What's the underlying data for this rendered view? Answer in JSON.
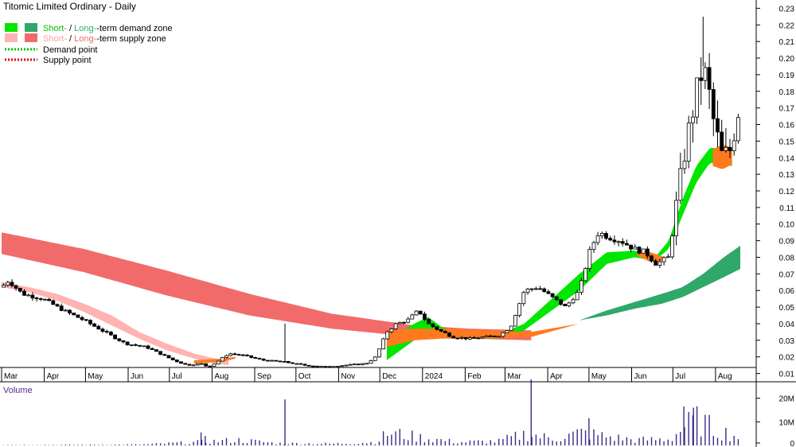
{
  "chart_data": {
    "type": "candlestick",
    "title": "Titomic Limited Ordinary - Daily",
    "legend": [
      {
        "label_a": "Short-",
        "sep": " / ",
        "label_b": "Long-",
        "rest": "-term demand zone",
        "color_a": "#00e600",
        "color_b": "#2fa86a",
        "text_a": "#00c000",
        "text_b": "#2fa86a"
      },
      {
        "label_a": "Short-",
        "sep": " / ",
        "label_b": "Long-",
        "rest": "-term supply zone",
        "color_a": "#ffb3b3",
        "color_b": "#f26b6b",
        "text_a": "#ff9e9e",
        "text_b": "#f26b6b"
      },
      {
        "label": "Demand point",
        "color": "#00c000",
        "dotted": true
      },
      {
        "label": "Supply point",
        "color": "#e00000",
        "dotted": true
      }
    ],
    "price_axis": {
      "min": 0.005,
      "max": 0.235,
      "ticks": [
        "0.23",
        "0.22",
        "0.21",
        "0.20",
        "0.19",
        "0.18",
        "0.17",
        "0.16",
        "0.15",
        "0.14",
        "0.13",
        "0.12",
        "0.11",
        "0.10",
        "0.09",
        "0.08",
        "0.07",
        "0.06",
        "0.05",
        "0.04",
        "0.03",
        "0.02",
        "0.01"
      ]
    },
    "volume_axis": {
      "title": "Volume",
      "min": 0,
      "max": 27000000,
      "ticks": [
        "20M",
        "10M",
        "0"
      ]
    },
    "months": [
      "Mar",
      "Apr",
      "May",
      "Jun",
      "Jul",
      "Aug",
      "Sep",
      "Oct",
      "Nov",
      "Dec",
      "2024",
      "Feb",
      "Mar",
      "Apr",
      "May",
      "Jun",
      "Jul",
      "Aug"
    ],
    "month_days": [
      0,
      31,
      61,
      92,
      122,
      153,
      184,
      214,
      245,
      275,
      306,
      337,
      366,
      397,
      427,
      458,
      488,
      519
    ],
    "total_days": 537,
    "price_path": [
      [
        0,
        0.062
      ],
      [
        5,
        0.066
      ],
      [
        15,
        0.058
      ],
      [
        30,
        0.055
      ],
      [
        45,
        0.048
      ],
      [
        60,
        0.042
      ],
      [
        75,
        0.035
      ],
      [
        90,
        0.028
      ],
      [
        105,
        0.026
      ],
      [
        115,
        0.022
      ],
      [
        125,
        0.018
      ],
      [
        135,
        0.015
      ],
      [
        145,
        0.016
      ],
      [
        150,
        0.014
      ],
      [
        155,
        0.016
      ],
      [
        165,
        0.022
      ],
      [
        175,
        0.021
      ],
      [
        190,
        0.018
      ],
      [
        205,
        0.017
      ],
      [
        220,
        0.015
      ],
      [
        235,
        0.014
      ],
      [
        250,
        0.015
      ],
      [
        265,
        0.016
      ],
      [
        272,
        0.02
      ],
      [
        280,
        0.035
      ],
      [
        287,
        0.04
      ],
      [
        295,
        0.042
      ],
      [
        303,
        0.048
      ],
      [
        310,
        0.04
      ],
      [
        318,
        0.036
      ],
      [
        328,
        0.032
      ],
      [
        340,
        0.031
      ],
      [
        352,
        0.032
      ],
      [
        362,
        0.033
      ],
      [
        370,
        0.038
      ],
      [
        380,
        0.06
      ],
      [
        390,
        0.062
      ],
      [
        400,
        0.056
      ],
      [
        410,
        0.05
      ],
      [
        420,
        0.06
      ],
      [
        428,
        0.085
      ],
      [
        434,
        0.095
      ],
      [
        442,
        0.092
      ],
      [
        450,
        0.09
      ],
      [
        460,
        0.085
      ],
      [
        468,
        0.083
      ],
      [
        476,
        0.076
      ],
      [
        485,
        0.08
      ],
      [
        492,
        0.12
      ],
      [
        498,
        0.15
      ],
      [
        504,
        0.175
      ],
      [
        510,
        0.195
      ],
      [
        514,
        0.18
      ],
      [
        518,
        0.16
      ],
      [
        524,
        0.14
      ],
      [
        530,
        0.145
      ],
      [
        537,
        0.175
      ]
    ],
    "volume_path": [
      [
        0,
        0.2
      ],
      [
        60,
        0.3
      ],
      [
        100,
        0.4
      ],
      [
        140,
        1.5
      ],
      [
        170,
        2.5
      ],
      [
        200,
        1.0
      ],
      [
        240,
        0.8
      ],
      [
        270,
        1.5
      ],
      [
        280,
        6.0
      ],
      [
        300,
        4.0
      ],
      [
        330,
        1.5
      ],
      [
        360,
        2.0
      ],
      [
        380,
        5.5
      ],
      [
        400,
        3.0
      ],
      [
        420,
        6.0
      ],
      [
        440,
        4.0
      ],
      [
        460,
        2.5
      ],
      [
        485,
        3.0
      ],
      [
        495,
        9.0
      ],
      [
        505,
        12.0
      ],
      [
        515,
        8.0
      ],
      [
        537,
        3.5
      ]
    ],
    "volume_spikes": [
      [
        145,
        5.5
      ],
      [
        148,
        4.0
      ],
      [
        206,
        19.5
      ],
      [
        385,
        28.0
      ],
      [
        427,
        11.5
      ],
      [
        496,
        16.5
      ],
      [
        503,
        16.0
      ]
    ],
    "long_supply_zone": {
      "from_day": 0,
      "to_day": 385,
      "upper": [
        [
          0,
          0.095
        ],
        [
          60,
          0.085
        ],
        [
          120,
          0.072
        ],
        [
          180,
          0.058
        ],
        [
          240,
          0.046
        ],
        [
          300,
          0.039
        ],
        [
          340,
          0.037
        ],
        [
          385,
          0.036
        ]
      ],
      "lower": [
        [
          0,
          0.082
        ],
        [
          60,
          0.071
        ],
        [
          120,
          0.057
        ],
        [
          180,
          0.045
        ],
        [
          240,
          0.037
        ],
        [
          300,
          0.032
        ],
        [
          340,
          0.031
        ],
        [
          385,
          0.03
        ]
      ]
    },
    "short_supply_zone": {
      "from_day": 0,
      "to_day": 165,
      "upper": [
        [
          0,
          0.065
        ],
        [
          20,
          0.062
        ],
        [
          40,
          0.058
        ],
        [
          60,
          0.052
        ],
        [
          80,
          0.045
        ],
        [
          100,
          0.035
        ],
        [
          120,
          0.028
        ],
        [
          140,
          0.022
        ],
        [
          155,
          0.019
        ],
        [
          165,
          0.018
        ]
      ],
      "lower": [
        [
          0,
          0.062
        ],
        [
          20,
          0.059
        ],
        [
          40,
          0.054
        ],
        [
          60,
          0.047
        ],
        [
          80,
          0.039
        ],
        [
          100,
          0.031
        ],
        [
          120,
          0.024
        ],
        [
          140,
          0.019
        ],
        [
          155,
          0.016
        ],
        [
          165,
          0.015
        ]
      ]
    },
    "short_demand_zone": {
      "from_day": 280,
      "to_day": 531,
      "upper": [
        [
          280,
          0.03
        ],
        [
          300,
          0.04
        ],
        [
          310,
          0.044
        ],
        [
          320,
          0.038
        ],
        [
          340,
          0.033
        ],
        [
          360,
          0.033
        ],
        [
          380,
          0.04
        ],
        [
          400,
          0.055
        ],
        [
          420,
          0.07
        ],
        [
          440,
          0.083
        ],
        [
          460,
          0.084
        ],
        [
          475,
          0.08
        ],
        [
          485,
          0.09
        ],
        [
          495,
          0.115
        ],
        [
          505,
          0.135
        ],
        [
          515,
          0.146
        ],
        [
          531,
          0.145
        ]
      ],
      "lower": [
        [
          280,
          0.018
        ],
        [
          300,
          0.03
        ],
        [
          310,
          0.036
        ],
        [
          320,
          0.033
        ],
        [
          340,
          0.031
        ],
        [
          360,
          0.031
        ],
        [
          380,
          0.036
        ],
        [
          400,
          0.048
        ],
        [
          420,
          0.06
        ],
        [
          440,
          0.076
        ],
        [
          460,
          0.08
        ],
        [
          475,
          0.078
        ],
        [
          485,
          0.085
        ],
        [
          495,
          0.105
        ],
        [
          505,
          0.125
        ],
        [
          515,
          0.137
        ],
        [
          531,
          0.135
        ]
      ]
    },
    "long_demand_zone": {
      "from_day": 420,
      "to_day": 537,
      "upper": [
        [
          420,
          0.042
        ],
        [
          440,
          0.048
        ],
        [
          460,
          0.053
        ],
        [
          480,
          0.058
        ],
        [
          495,
          0.062
        ],
        [
          510,
          0.07
        ],
        [
          525,
          0.08
        ],
        [
          537,
          0.087
        ]
      ],
      "lower": [
        [
          420,
          0.042
        ],
        [
          440,
          0.045
        ],
        [
          460,
          0.049
        ],
        [
          480,
          0.052
        ],
        [
          495,
          0.056
        ],
        [
          510,
          0.062
        ],
        [
          525,
          0.068
        ],
        [
          537,
          0.073
        ]
      ]
    },
    "orange_zones": [
      {
        "upper": [
          [
            140,
            0.018
          ],
          [
            160,
            0.019
          ],
          [
            170,
            0.02
          ]
        ],
        "lower": [
          [
            140,
            0.016
          ],
          [
            160,
            0.017
          ],
          [
            170,
            0.019
          ]
        ]
      },
      {
        "upper": [
          [
            280,
            0.036
          ],
          [
            300,
            0.037
          ],
          [
            320,
            0.037
          ],
          [
            350,
            0.036
          ],
          [
            385,
            0.035
          ],
          [
            420,
            0.04
          ]
        ],
        "lower": [
          [
            280,
            0.026
          ],
          [
            300,
            0.03
          ],
          [
            320,
            0.031
          ],
          [
            350,
            0.031
          ],
          [
            385,
            0.032
          ],
          [
            420,
            0.04
          ]
        ]
      },
      {
        "upper": [
          [
            462,
            0.085
          ],
          [
            472,
            0.083
          ],
          [
            482,
            0.08
          ]
        ],
        "lower": [
          [
            462,
            0.081
          ],
          [
            472,
            0.077
          ],
          [
            482,
            0.078
          ]
        ]
      },
      {
        "upper": [
          [
            517,
            0.145
          ],
          [
            524,
            0.148
          ],
          [
            531,
            0.146
          ]
        ],
        "lower": [
          [
            517,
            0.135
          ],
          [
            524,
            0.133
          ],
          [
            531,
            0.136
          ]
        ]
      }
    ],
    "colors": {
      "background": "#ffffff",
      "candle_up": "#ffffff",
      "candle_down": "#000000",
      "wick": "#000000",
      "volume_bar": "#3a2b8a",
      "axis": "#000000"
    }
  }
}
